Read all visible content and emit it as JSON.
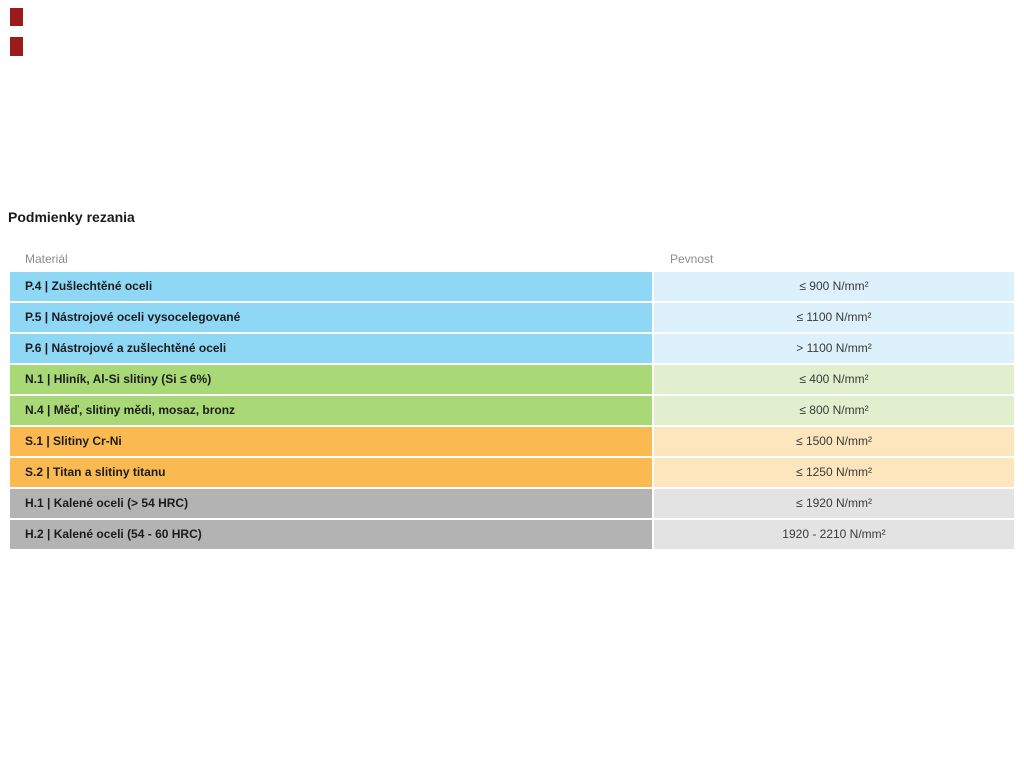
{
  "page": {
    "title": "Podmienky rezania"
  },
  "logo": {
    "color": "#9b1b1b"
  },
  "table": {
    "headers": {
      "material": "Materiál",
      "pevnost": "Pevnost"
    },
    "rows": [
      {
        "material": "P.4 | Zušlechtěné oceli",
        "pevnost": "≤ 900 N/mm²",
        "group": "blue"
      },
      {
        "material": "P.5 | Nástrojové oceli vysocelegované",
        "pevnost": "≤ 1100 N/mm²",
        "group": "blue"
      },
      {
        "material": "P.6 | Nástrojové a zušlechtěné oceli",
        "pevnost": "> 1100 N/mm²",
        "group": "blue"
      },
      {
        "material": "N.1 | Hliník, Al-Si slitiny (Si ≤ 6%)",
        "pevnost": "≤ 400 N/mm²",
        "group": "green"
      },
      {
        "material": "N.4 | Měď, slitiny mědi, mosaz, bronz",
        "pevnost": "≤ 800 N/mm²",
        "group": "green"
      },
      {
        "material": "S.1 | Slitiny Cr-Ni",
        "pevnost": "≤ 1500 N/mm²",
        "group": "orange"
      },
      {
        "material": "S.2 | Titan a slitiny titanu",
        "pevnost": "≤ 1250 N/mm²",
        "group": "orange"
      },
      {
        "material": "H.1 | Kalené oceli (> 54 HRC)",
        "pevnost": "≤ 1920 N/mm²",
        "group": "gray"
      },
      {
        "material": "H.2 | Kalené oceli (54 - 60 HRC)",
        "pevnost": "1920 - 2210 N/mm²",
        "group": "gray"
      }
    ]
  },
  "colors": {
    "blue": {
      "left": "#8ed7f5",
      "right": "#dcf1fb"
    },
    "green": {
      "left": "#a9d877",
      "right": "#e2efce"
    },
    "orange": {
      "left": "#fbb951",
      "right": "#fde5bd"
    },
    "gray": {
      "left": "#b3b3b3",
      "right": "#e3e3e3"
    }
  }
}
